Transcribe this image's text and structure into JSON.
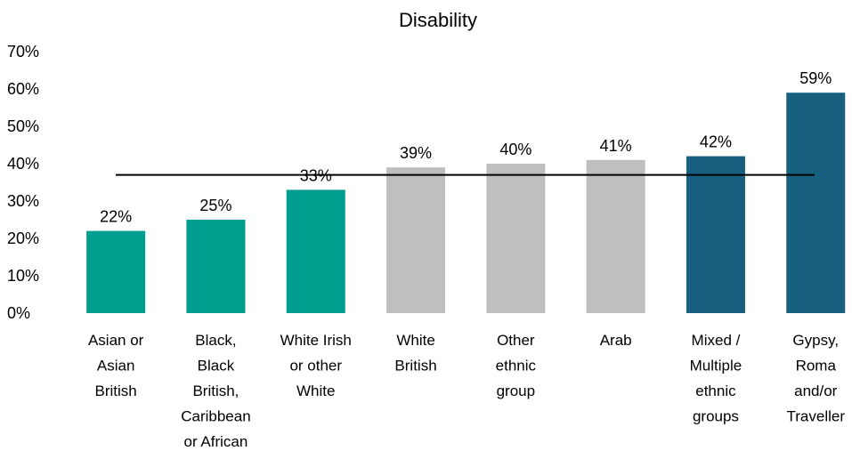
{
  "chart_data": {
    "type": "bar",
    "title": "Disability",
    "xlabel": "",
    "ylabel": "",
    "ylim": [
      0,
      70
    ],
    "yticks": [
      "0%",
      "10%",
      "20%",
      "30%",
      "40%",
      "50%",
      "60%",
      "70%"
    ],
    "categories": [
      [
        "Asian or",
        "Asian",
        "British"
      ],
      [
        "Black,",
        "Black",
        "British,",
        "Caribbean",
        "or African"
      ],
      [
        "White Irish",
        "or other",
        "White"
      ],
      [
        "White",
        "British"
      ],
      [
        "Other",
        "ethnic",
        "group"
      ],
      [
        "Arab"
      ],
      [
        "Mixed /",
        "Multiple",
        "ethnic",
        "groups"
      ],
      [
        "Gypsy,",
        "Roma",
        "and/or",
        "Traveller"
      ]
    ],
    "values": [
      22,
      25,
      33,
      39,
      40,
      41,
      42,
      59
    ],
    "data_labels": [
      "22%",
      "25%",
      "33%",
      "39%",
      "40%",
      "41%",
      "42%",
      "59%"
    ],
    "bar_colors": [
      "#009e8e",
      "#009e8e",
      "#009e8e",
      "#bfbfbf",
      "#bfbfbf",
      "#bfbfbf",
      "#17607f",
      "#17607f"
    ],
    "reference_line": 37,
    "reference_line_color": "#000000",
    "grid": false,
    "legend": "none"
  }
}
